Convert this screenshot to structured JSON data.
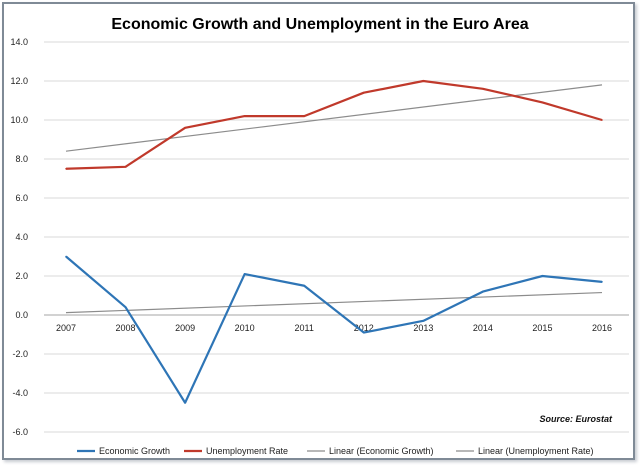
{
  "chart_data": {
    "type": "line",
    "title": "Economic Growth and Unemployment in the Euro Area",
    "x": [
      "2007",
      "2008",
      "2009",
      "2010",
      "2011",
      "2012",
      "2013",
      "2014",
      "2015",
      "2016"
    ],
    "ylim": [
      -6.0,
      14.0
    ],
    "yticks": [
      "14.0",
      "12.0",
      "10.0",
      "8.0",
      "6.0",
      "4.0",
      "2.0",
      "0.0",
      "-2.0",
      "-4.0",
      "-6.0"
    ],
    "grid": true,
    "legend_position": "bottom",
    "series": [
      {
        "name": "Economic Growth",
        "color": "#2e75b6",
        "values": [
          3.0,
          0.4,
          -4.5,
          2.1,
          1.5,
          -0.9,
          -0.3,
          1.2,
          2.0,
          1.7
        ]
      },
      {
        "name": "Unemployment Rate",
        "color": "#c0392b",
        "values": [
          7.5,
          7.6,
          9.6,
          10.2,
          10.2,
          11.4,
          12.0,
          11.6,
          10.9,
          10.0
        ]
      }
    ],
    "trendlines": [
      {
        "name": "Linear (Economic Growth)",
        "color": "#8c8c8c",
        "start": 0.12,
        "end": 1.15
      },
      {
        "name": "Linear (Unemployment Rate)",
        "color": "#8c8c8c",
        "start": 8.4,
        "end": 11.8
      }
    ],
    "annotation": "Source: Eurostat"
  }
}
